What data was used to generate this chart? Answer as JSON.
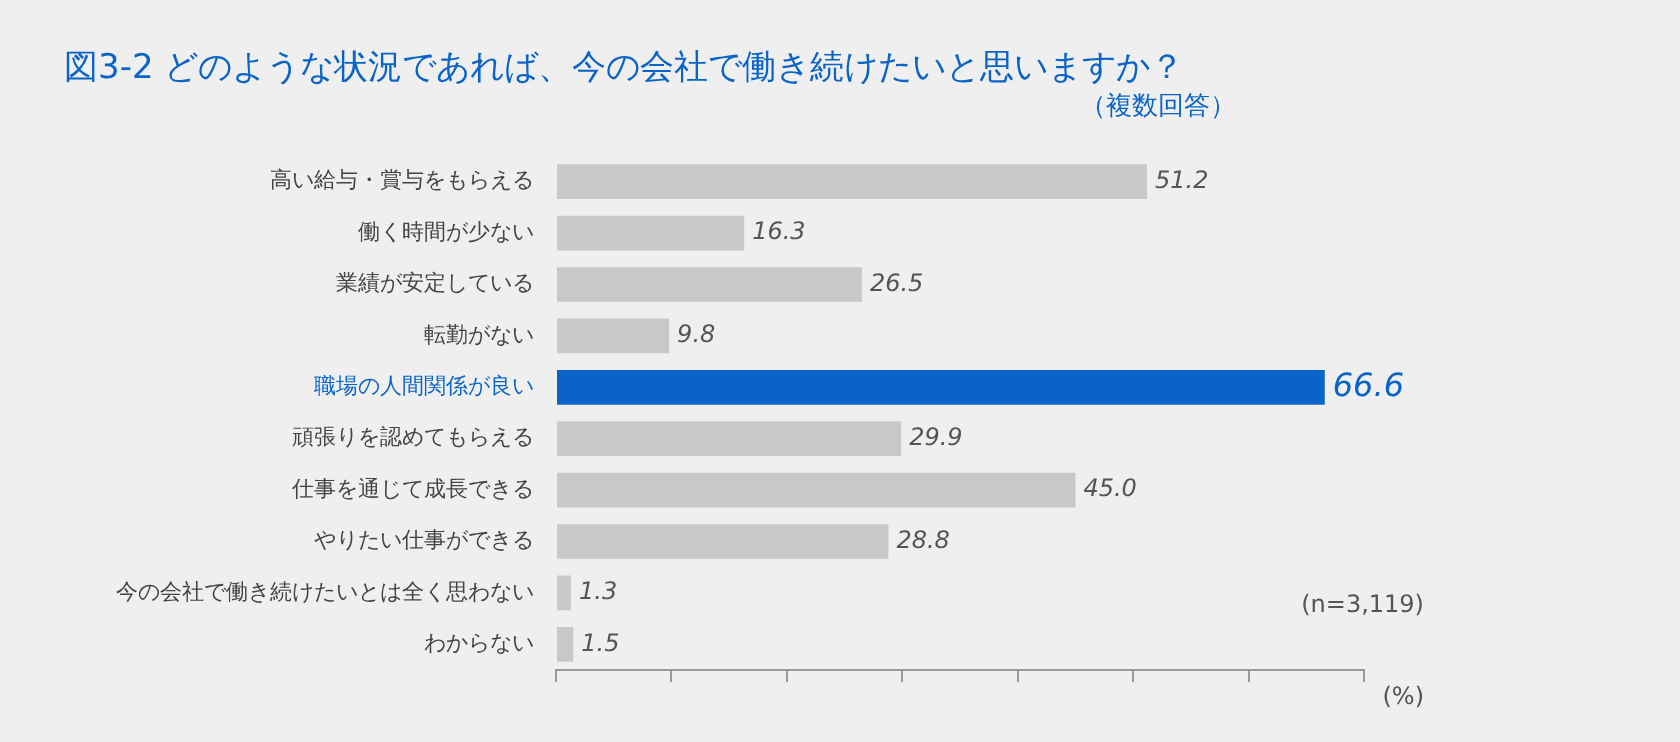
{
  "chart_data": {
    "type": "bar",
    "orientation": "horizontal",
    "title": "図3-2 どのような状況であれば、今の会社で働き続けたいと思いますか？",
    "subtitle": "（複数回答）",
    "categories": [
      "高い給与・賞与をもらえる",
      "働く時間が少ない",
      "業績が安定している",
      "転勤がない",
      "職場の人間関係が良い",
      "頑張りを認めてもらえる",
      "仕事を通じて成長できる",
      "やりたい仕事ができる",
      "今の会社で働き続けたいとは全く思わない",
      "わからない"
    ],
    "values": [
      51.2,
      16.3,
      26.5,
      9.8,
      66.6,
      29.9,
      45.0,
      28.8,
      1.3,
      1.5
    ],
    "colors": [
      "#c8c8c8",
      "#c8c8c8",
      "#c8c8c8",
      "#c8c8c8",
      "#0a64c8",
      "#c8c8c8",
      "#c8c8c8",
      "#c8c8c8",
      "#c8c8c8",
      "#c8c8c8"
    ],
    "value_labels": [
      "51.2",
      "16.3",
      "26.5",
      "9.8",
      "66.6",
      "29.9",
      "45.0",
      "28.8",
      "1.3",
      "1.5"
    ],
    "xlim": [
      0,
      70
    ],
    "xticks": [
      {
        "value": 0,
        "label": null
      },
      {
        "value": 10,
        "label": null
      },
      {
        "value": 20,
        "label": null
      },
      {
        "value": 30,
        "label": null
      },
      {
        "value": 40,
        "label": null
      },
      {
        "value": 50,
        "label": null
      },
      {
        "value": 60,
        "label": null
      },
      {
        "value": 70,
        "label": null
      }
    ],
    "tick_labels": "y",
    "annotations": [
      "(n=3,119)",
      "(%)"
    ]
  }
}
